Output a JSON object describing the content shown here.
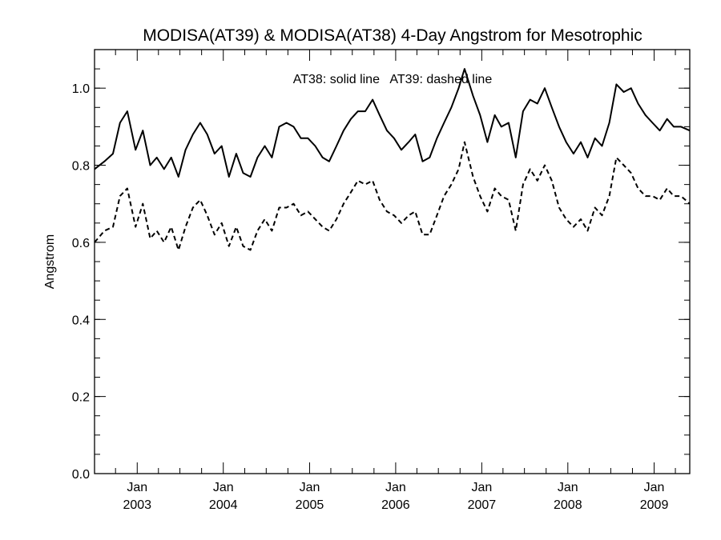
{
  "chart_data": {
    "type": "line",
    "title": "MODISA(AT39) & MODISA(AT38) 4-Day Angstrom for Mesotrophic",
    "xlabel": "",
    "ylabel": "Angstrom",
    "annotation": "AT38: solid line   AT39: dashed line",
    "xlim": [
      "2002-07-04",
      "2009-06-01"
    ],
    "ylim": [
      0.0,
      1.1
    ],
    "y_ticks": [
      "0.0",
      "0.2",
      "0.4",
      "0.6",
      "0.8",
      "1.0"
    ],
    "x_ticks": [
      {
        "date": "2003-01-01",
        "month": "Jan",
        "year": "2003"
      },
      {
        "date": "2004-01-01",
        "month": "Jan",
        "year": "2004"
      },
      {
        "date": "2005-01-01",
        "month": "Jan",
        "year": "2005"
      },
      {
        "date": "2006-01-01",
        "month": "Jan",
        "year": "2006"
      },
      {
        "date": "2007-01-01",
        "month": "Jan",
        "year": "2007"
      },
      {
        "date": "2008-01-01",
        "month": "Jan",
        "year": "2008"
      },
      {
        "date": "2009-01-01",
        "month": "Jan",
        "year": "2009"
      }
    ],
    "series": [
      {
        "name": "AT38",
        "style": "solid",
        "points": [
          [
            "2002-07-04",
            0.79
          ],
          [
            "2002-08-15",
            0.81
          ],
          [
            "2002-09-20",
            0.83
          ],
          [
            "2002-10-20",
            0.91
          ],
          [
            "2002-11-20",
            0.94
          ],
          [
            "2002-12-25",
            0.84
          ],
          [
            "2003-01-25",
            0.89
          ],
          [
            "2003-02-25",
            0.8
          ],
          [
            "2003-03-25",
            0.82
          ],
          [
            "2003-04-25",
            0.79
          ],
          [
            "2003-05-25",
            0.82
          ],
          [
            "2003-06-25",
            0.77
          ],
          [
            "2003-07-25",
            0.84
          ],
          [
            "2003-08-25",
            0.88
          ],
          [
            "2003-09-25",
            0.91
          ],
          [
            "2003-10-25",
            0.88
          ],
          [
            "2003-11-25",
            0.83
          ],
          [
            "2003-12-25",
            0.85
          ],
          [
            "2004-01-25",
            0.77
          ],
          [
            "2004-02-25",
            0.83
          ],
          [
            "2004-03-25",
            0.78
          ],
          [
            "2004-04-25",
            0.77
          ],
          [
            "2004-05-25",
            0.82
          ],
          [
            "2004-06-25",
            0.85
          ],
          [
            "2004-07-25",
            0.82
          ],
          [
            "2004-08-25",
            0.9
          ],
          [
            "2004-09-25",
            0.91
          ],
          [
            "2004-10-25",
            0.9
          ],
          [
            "2004-11-25",
            0.87
          ],
          [
            "2004-12-25",
            0.87
          ],
          [
            "2005-01-25",
            0.85
          ],
          [
            "2005-02-25",
            0.82
          ],
          [
            "2005-03-25",
            0.81
          ],
          [
            "2005-04-25",
            0.85
          ],
          [
            "2005-05-25",
            0.89
          ],
          [
            "2005-06-25",
            0.92
          ],
          [
            "2005-07-25",
            0.94
          ],
          [
            "2005-08-25",
            0.94
          ],
          [
            "2005-09-25",
            0.97
          ],
          [
            "2005-10-25",
            0.93
          ],
          [
            "2005-11-25",
            0.89
          ],
          [
            "2005-12-25",
            0.87
          ],
          [
            "2006-01-25",
            0.84
          ],
          [
            "2006-02-25",
            0.86
          ],
          [
            "2006-03-25",
            0.88
          ],
          [
            "2006-04-25",
            0.81
          ],
          [
            "2006-05-25",
            0.82
          ],
          [
            "2006-06-25",
            0.87
          ],
          [
            "2006-07-25",
            0.91
          ],
          [
            "2006-08-25",
            0.95
          ],
          [
            "2006-09-25",
            1.0
          ],
          [
            "2006-10-20",
            1.05
          ],
          [
            "2006-11-25",
            0.98
          ],
          [
            "2006-12-25",
            0.93
          ],
          [
            "2007-01-25",
            0.86
          ],
          [
            "2007-02-25",
            0.93
          ],
          [
            "2007-03-25",
            0.9
          ],
          [
            "2007-04-25",
            0.91
          ],
          [
            "2007-05-25",
            0.82
          ],
          [
            "2007-06-25",
            0.94
          ],
          [
            "2007-07-25",
            0.97
          ],
          [
            "2007-08-25",
            0.96
          ],
          [
            "2007-09-25",
            1.0
          ],
          [
            "2007-10-25",
            0.95
          ],
          [
            "2007-11-25",
            0.9
          ],
          [
            "2007-12-25",
            0.86
          ],
          [
            "2008-01-25",
            0.83
          ],
          [
            "2008-02-25",
            0.86
          ],
          [
            "2008-03-25",
            0.82
          ],
          [
            "2008-04-25",
            0.87
          ],
          [
            "2008-05-25",
            0.85
          ],
          [
            "2008-06-25",
            0.91
          ],
          [
            "2008-07-25",
            1.01
          ],
          [
            "2008-08-25",
            0.99
          ],
          [
            "2008-09-25",
            1.0
          ],
          [
            "2008-10-25",
            0.96
          ],
          [
            "2008-11-25",
            0.93
          ],
          [
            "2008-12-25",
            0.91
          ],
          [
            "2009-01-25",
            0.89
          ],
          [
            "2009-02-25",
            0.92
          ],
          [
            "2009-03-25",
            0.9
          ],
          [
            "2009-04-25",
            0.9
          ],
          [
            "2009-06-01",
            0.89
          ]
        ]
      },
      {
        "name": "AT39",
        "style": "dashed",
        "points": [
          [
            "2002-07-04",
            0.6
          ],
          [
            "2002-08-15",
            0.63
          ],
          [
            "2002-09-20",
            0.64
          ],
          [
            "2002-10-20",
            0.72
          ],
          [
            "2002-11-20",
            0.74
          ],
          [
            "2002-12-25",
            0.64
          ],
          [
            "2003-01-25",
            0.7
          ],
          [
            "2003-02-25",
            0.61
          ],
          [
            "2003-03-25",
            0.63
          ],
          [
            "2003-04-25",
            0.6
          ],
          [
            "2003-05-25",
            0.64
          ],
          [
            "2003-06-25",
            0.58
          ],
          [
            "2003-07-25",
            0.64
          ],
          [
            "2003-08-25",
            0.69
          ],
          [
            "2003-09-25",
            0.71
          ],
          [
            "2003-10-25",
            0.67
          ],
          [
            "2003-11-25",
            0.62
          ],
          [
            "2003-12-25",
            0.65
          ],
          [
            "2004-01-25",
            0.59
          ],
          [
            "2004-02-25",
            0.64
          ],
          [
            "2004-03-25",
            0.59
          ],
          [
            "2004-04-25",
            0.58
          ],
          [
            "2004-05-25",
            0.63
          ],
          [
            "2004-06-25",
            0.66
          ],
          [
            "2004-07-25",
            0.63
          ],
          [
            "2004-08-25",
            0.69
          ],
          [
            "2004-09-25",
            0.69
          ],
          [
            "2004-10-25",
            0.7
          ],
          [
            "2004-11-25",
            0.67
          ],
          [
            "2004-12-25",
            0.68
          ],
          [
            "2005-01-25",
            0.66
          ],
          [
            "2005-02-25",
            0.64
          ],
          [
            "2005-03-25",
            0.63
          ],
          [
            "2005-04-25",
            0.66
          ],
          [
            "2005-05-25",
            0.7
          ],
          [
            "2005-06-25",
            0.73
          ],
          [
            "2005-07-25",
            0.76
          ],
          [
            "2005-08-25",
            0.75
          ],
          [
            "2005-09-25",
            0.76
          ],
          [
            "2005-10-25",
            0.71
          ],
          [
            "2005-11-25",
            0.68
          ],
          [
            "2005-12-25",
            0.67
          ],
          [
            "2006-01-25",
            0.65
          ],
          [
            "2006-02-25",
            0.67
          ],
          [
            "2006-03-25",
            0.68
          ],
          [
            "2006-04-25",
            0.62
          ],
          [
            "2006-05-25",
            0.62
          ],
          [
            "2006-06-25",
            0.67
          ],
          [
            "2006-07-25",
            0.72
          ],
          [
            "2006-08-25",
            0.75
          ],
          [
            "2006-09-25",
            0.79
          ],
          [
            "2006-10-20",
            0.86
          ],
          [
            "2006-11-25",
            0.77
          ],
          [
            "2006-12-25",
            0.72
          ],
          [
            "2007-01-25",
            0.68
          ],
          [
            "2007-02-25",
            0.74
          ],
          [
            "2007-03-25",
            0.72
          ],
          [
            "2007-04-25",
            0.71
          ],
          [
            "2007-05-25",
            0.63
          ],
          [
            "2007-06-25",
            0.75
          ],
          [
            "2007-07-25",
            0.79
          ],
          [
            "2007-08-25",
            0.76
          ],
          [
            "2007-09-25",
            0.8
          ],
          [
            "2007-10-25",
            0.76
          ],
          [
            "2007-11-25",
            0.69
          ],
          [
            "2007-12-25",
            0.66
          ],
          [
            "2008-01-25",
            0.64
          ],
          [
            "2008-02-25",
            0.66
          ],
          [
            "2008-03-25",
            0.63
          ],
          [
            "2008-04-25",
            0.69
          ],
          [
            "2008-05-25",
            0.67
          ],
          [
            "2008-06-25",
            0.72
          ],
          [
            "2008-07-25",
            0.82
          ],
          [
            "2008-08-25",
            0.8
          ],
          [
            "2008-09-25",
            0.78
          ],
          [
            "2008-10-25",
            0.74
          ],
          [
            "2008-11-25",
            0.72
          ],
          [
            "2008-12-25",
            0.72
          ],
          [
            "2009-01-25",
            0.71
          ],
          [
            "2009-02-25",
            0.74
          ],
          [
            "2009-03-25",
            0.72
          ],
          [
            "2009-04-25",
            0.72
          ],
          [
            "2009-06-01",
            0.7
          ]
        ]
      }
    ]
  }
}
